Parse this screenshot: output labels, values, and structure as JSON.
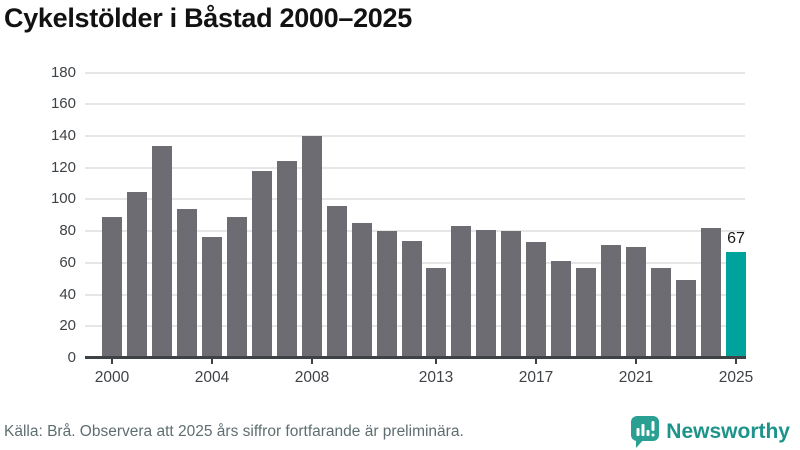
{
  "page": {
    "title": "Cykelstölder i Båstad 2000–2025",
    "footer": {
      "source_text": "Källa: Brå. Observera att 2025 års siffror fortfarande är preliminära.",
      "brand": "Newsworthy"
    }
  },
  "colors": {
    "bar": "#6c6c72",
    "highlight": "#00a39b",
    "grid": "#e6e6e6",
    "axis": "#3d4247",
    "tick_label": "#3f4347",
    "title": "#121212",
    "footer_text": "#5e6e70",
    "brand": "#1d9489"
  },
  "icons": {
    "logo": "newsworthy-speech-bubble-bar-chart-icon"
  },
  "chart_data": {
    "type": "bar",
    "title": "Cykelstölder i Båstad 2000–2025",
    "x": [
      2000,
      2001,
      2002,
      2003,
      2004,
      2005,
      2006,
      2007,
      2008,
      2009,
      2010,
      2011,
      2012,
      2013,
      2014,
      2015,
      2016,
      2017,
      2018,
      2019,
      2020,
      2021,
      2022,
      2023,
      2024,
      2025
    ],
    "values": [
      89,
      105,
      134,
      94,
      76,
      89,
      118,
      124,
      140,
      96,
      85,
      80,
      74,
      57,
      83,
      81,
      80,
      73,
      61,
      57,
      71,
      70,
      57,
      49,
      82,
      67
    ],
    "highlight_index": 25,
    "highlight_value_label": "67",
    "xlabel": "",
    "ylabel": "",
    "ylim": [
      0,
      180
    ],
    "yticks": [
      0,
      20,
      40,
      60,
      80,
      100,
      120,
      140,
      160,
      180
    ],
    "xtick_labels": [
      2000,
      2004,
      2008,
      2013,
      2017,
      2021,
      2025
    ],
    "grid": true,
    "legend_position": "none"
  }
}
